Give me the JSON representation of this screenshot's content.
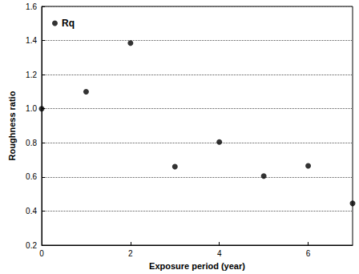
{
  "chart_data": {
    "type": "scatter",
    "x_label": "Exposure period (year)",
    "y_label": "Roughness ratio",
    "series": [
      {
        "name": "Rq",
        "color": "#000000",
        "marker": "circle",
        "x": [
          0,
          1,
          2,
          3,
          4,
          5,
          6,
          7
        ],
        "values": [
          1.0,
          1.1,
          1.385,
          0.66,
          0.805,
          0.605,
          0.665,
          0.445
        ]
      }
    ],
    "xlim": [
      0,
      7
    ],
    "xticks": [
      0,
      2,
      4,
      6
    ],
    "ylim": [
      0.2,
      1.6
    ],
    "yticks": [
      0.2,
      0.4,
      0.6,
      0.8,
      {
        "value": 1,
        "label": "1.0"
      },
      1.2,
      1.4,
      1.6
    ],
    "grid": "y",
    "legend": "upper left"
  }
}
